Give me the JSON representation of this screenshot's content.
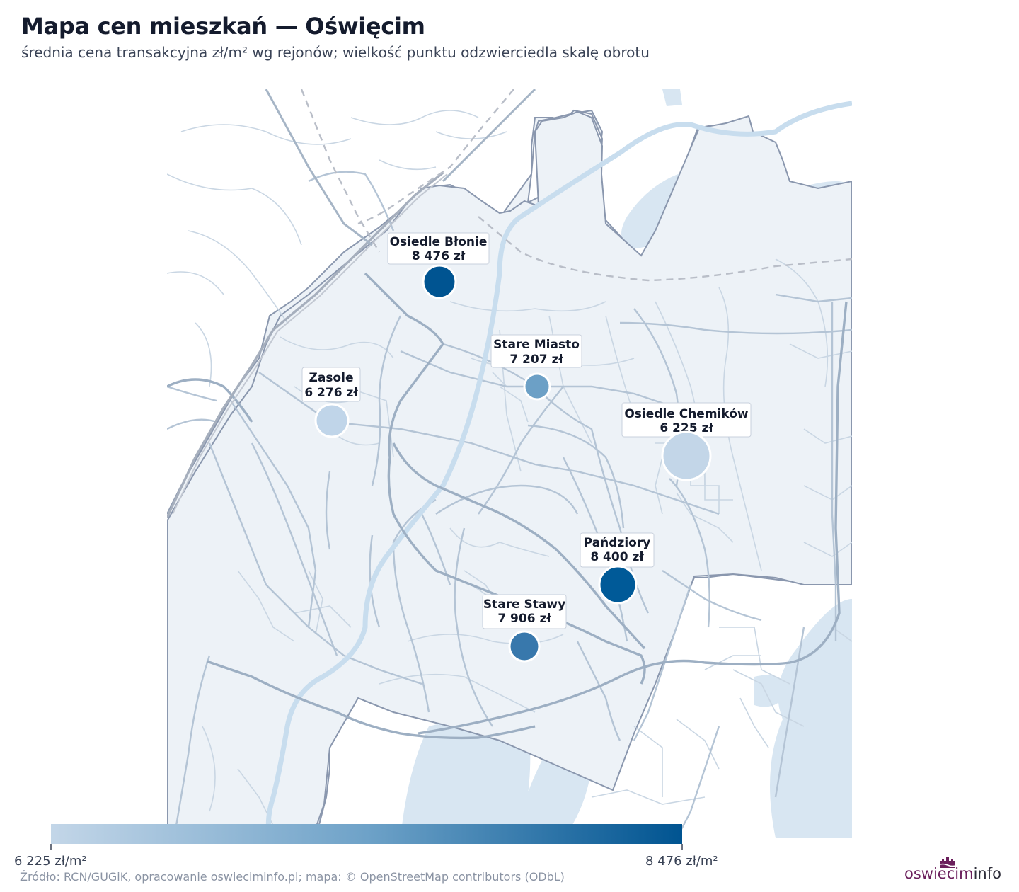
{
  "header": {
    "title": "Mapa cen mieszkań — Oświęcim",
    "subtitle": "średnia cena transakcyjna zł/m² wg rejonów; wielkość punktu odzwierciedla skalę obrotu"
  },
  "colors": {
    "scale_low": "#c3d6e8",
    "scale_high": "#005491",
    "district_fill": "#edf2f7",
    "water": "#d8e6f2",
    "road_main": "#9dafc3",
    "road_minor": "#c9d6e3",
    "boundary": "#8a97ae"
  },
  "districts": [
    {
      "name": "Osiedle Błonie",
      "price": 8476,
      "price_label": "8 476 zł",
      "size": "medium",
      "color": "#005491"
    },
    {
      "name": "Stare Miasto",
      "price": 7207,
      "price_label": "7 207 zł",
      "size": "small",
      "color": "#6ca0c6"
    },
    {
      "name": "Zasole",
      "price": 6276,
      "price_label": "6 276 zł",
      "size": "medium",
      "color": "#c0d5e9"
    },
    {
      "name": "Osiedle Chemików",
      "price": 6225,
      "price_label": "6 225 zł",
      "size": "large",
      "color": "#c3d6e8"
    },
    {
      "name": "Pańdziory",
      "price": 8400,
      "price_label": "8 400 zł",
      "size": "medium",
      "color": "#005a98"
    },
    {
      "name": "Stare Stawy",
      "price": 7906,
      "price_label": "7 906 zł",
      "size": "small",
      "color": "#3878ac"
    }
  ],
  "legend": {
    "min_label": "6 225 zł/m²",
    "max_label": "8 476 zł/m²",
    "min_value": 6225,
    "max_value": 8476
  },
  "footer": {
    "source": "Źródło: RCN/GUGiK, opracowanie oswieciminfo.pl; mapa: © OpenStreetMap contributors (ODbL)",
    "brand_main": "oswiecim",
    "brand_accent": "info"
  }
}
